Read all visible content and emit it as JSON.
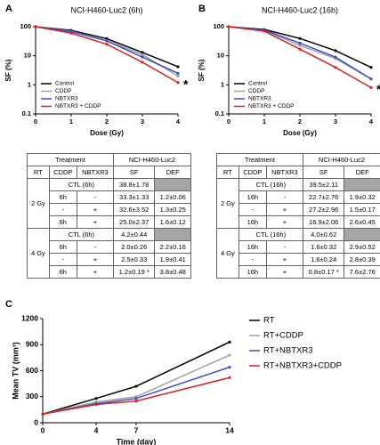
{
  "chart_data": [
    {
      "type": "line",
      "panel": "A",
      "title": "NCI-H460-Luc2 (6h)",
      "x_label": "Dose (Gy)",
      "y_label": "SF (%)",
      "x": [
        0,
        1,
        2,
        3,
        4
      ],
      "xlim": [
        0,
        4
      ],
      "xticks": [
        0,
        1,
        2,
        3,
        4
      ],
      "ylim": [
        0.1,
        100
      ],
      "yticks": [
        0.1,
        1,
        10,
        100
      ],
      "log_scale": true,
      "legend": "lower left",
      "series": [
        {
          "name": "Control",
          "color": "#000000",
          "values": [
            100,
            75,
            38.8,
            13,
            4.2
          ]
        },
        {
          "name": "CDDP",
          "color": "#a0a0a0",
          "values": [
            100,
            70,
            33.3,
            11,
            2.0
          ]
        },
        {
          "name": "NBTXR3",
          "color": "#3b4fc4",
          "values": [
            100,
            68,
            32.6,
            9,
            2.5
          ]
        },
        {
          "name": "NBTXR3 + CDDP",
          "color": "#e02020",
          "values": [
            100,
            60,
            25.0,
            6,
            1.2
          ]
        }
      ],
      "annotations": [
        {
          "text": "*",
          "x": 4,
          "y": 1.2,
          "color": "#e02020"
        }
      ]
    },
    {
      "type": "line",
      "panel": "B",
      "title": "NCI-H460-Luc2 (16h)",
      "x_label": "Dose (Gy)",
      "y_label": "SF (%)",
      "x": [
        0,
        1,
        2,
        3,
        4
      ],
      "xlim": [
        0,
        4
      ],
      "xticks": [
        0,
        1,
        2,
        3,
        4
      ],
      "ylim": [
        0.1,
        100
      ],
      "yticks": [
        0.1,
        1,
        10,
        100
      ],
      "log_scale": true,
      "legend": "lower left",
      "series": [
        {
          "name": "Control",
          "color": "#000000",
          "values": [
            100,
            80,
            39.5,
            15,
            4.0
          ]
        },
        {
          "name": "CDDP",
          "color": "#a0a0a0",
          "values": [
            100,
            75,
            22.7,
            8,
            1.6
          ]
        },
        {
          "name": "NBTXR3",
          "color": "#3b4fc4",
          "values": [
            100,
            76,
            27.2,
            9,
            1.6
          ]
        },
        {
          "name": "NBTXR3 + CDDP",
          "color": "#e02020",
          "values": [
            100,
            70,
            16.9,
            4,
            0.8
          ]
        }
      ],
      "annotations": [
        {
          "text": "*",
          "x": 4,
          "y": 0.8,
          "color": "#e02020"
        }
      ]
    },
    {
      "type": "line",
      "panel": "C",
      "x_label": "Time (day)",
      "y_label": "Mean TV (mm³)",
      "x": [
        0,
        4,
        7,
        14
      ],
      "xlim": [
        0,
        14
      ],
      "xticks": [
        0,
        4,
        7,
        14
      ],
      "ylim": [
        0,
        1200
      ],
      "yticks": [
        0,
        300,
        600,
        900,
        1200
      ],
      "log_scale": false,
      "legend": "right",
      "series": [
        {
          "name": "RT",
          "color": "#000000",
          "values": [
            100,
            280,
            420,
            930
          ]
        },
        {
          "name": "RT+CDDP",
          "color": "#a0a0a0",
          "values": [
            100,
            240,
            300,
            780
          ]
        },
        {
          "name": "RT+NBTXR3",
          "color": "#3b4fc4",
          "values": [
            100,
            220,
            280,
            640
          ]
        },
        {
          "name": "RT+NBTXR3+CDDP",
          "color": "#e02020",
          "values": [
            100,
            210,
            250,
            520
          ]
        }
      ]
    }
  ],
  "tables": [
    {
      "header": [
        "Treatment",
        "NCI-H460-Luc2"
      ],
      "columns": [
        "RT",
        "CDDP",
        "NBTXR3",
        "SF",
        "DEF"
      ],
      "groups": [
        {
          "dose": "2 Gy",
          "control": [
            "CTL (6h)",
            "38.8±1.78"
          ],
          "rows": [
            [
              "6h",
              "-",
              "33.3±1.33",
              "1.2±0.06"
            ],
            [
              "-",
              "+",
              "32.6±3.52",
              "1.3±0.25"
            ],
            [
              "6h",
              "+",
              "25.0±2.37",
              "1.6±0.12"
            ]
          ]
        },
        {
          "dose": "4 Gy",
          "control": [
            "CTL (6h)",
            "4.2±0.44"
          ],
          "rows": [
            [
              "6h",
              "-",
              "2.0±0.26",
              "2.2±0.16"
            ],
            [
              "-",
              "+",
              "2.5±0.33",
              "1.9±0.41"
            ],
            [
              "6h",
              "+",
              "1.2±0.19 *",
              "3.8±0.48"
            ]
          ]
        }
      ]
    },
    {
      "header": [
        "Treatment",
        "NCI-H460-Luc2"
      ],
      "columns": [
        "RT",
        "CDDP",
        "NBTXR3",
        "SF",
        "DEF"
      ],
      "groups": [
        {
          "dose": "2 Gy",
          "control": [
            "CTL (16h)",
            "39.5±2.11"
          ],
          "rows": [
            [
              "16h",
              "-",
              "22.7±2.76",
              "1.9±0.32"
            ],
            [
              "-",
              "+",
              "27.2±2.96",
              "1.5±0.17"
            ],
            [
              "16h",
              "+",
              "16.9±2.06",
              "2.6±0.45"
            ]
          ]
        },
        {
          "dose": "4 Gy",
          "control": [
            "CTL (16h)",
            "4.0±0.62"
          ],
          "rows": [
            [
              "16h",
              "-",
              "1.6±0.32",
              "2.9±0.52"
            ],
            [
              "-",
              "+",
              "1.6±0.24",
              "2.8±0.39"
            ],
            [
              "16h",
              "+",
              "0.8±0.17 *",
              "7.6±2.76"
            ]
          ]
        }
      ]
    }
  ]
}
